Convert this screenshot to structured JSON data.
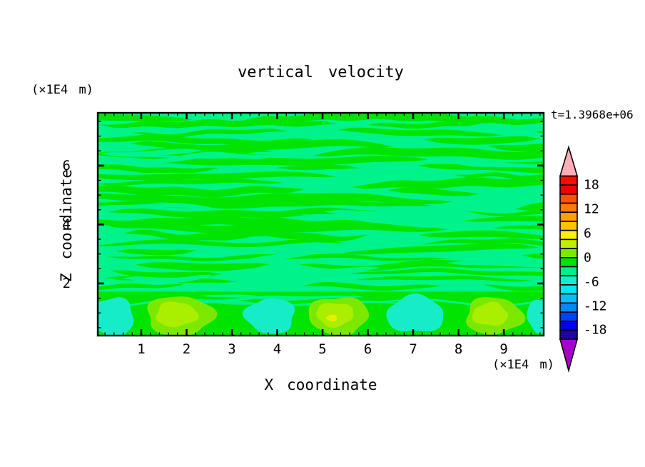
{
  "page": {
    "background": "#ffffff"
  },
  "chart_data": {
    "type": "filled_contour",
    "title": "vertical velocity",
    "timestamp": "t=1.3968e+06",
    "xlabel": "X coordinate",
    "ylabel": "Z coordinate",
    "x_axis_units": "(×1E4 m)",
    "y_axis_units": "(×1E4 m)",
    "xlim": [
      0.04,
      9.88
    ],
    "ylim": [
      0.23,
      7.79
    ],
    "x_major_ticks": [
      1,
      2,
      3,
      4,
      5,
      6,
      7,
      8,
      9
    ],
    "x_minor_step": 0.2,
    "y_major_ticks": [
      2,
      4,
      6
    ],
    "y_minor_step": 0.5,
    "grid": false,
    "colorbar": {
      "orientation": "vertical",
      "position": "right",
      "value_range": [
        -20.25,
        20.25
      ],
      "contour_interval": 2.25,
      "tick_values": [
        18,
        12,
        6,
        0,
        -6,
        -12,
        -18
      ],
      "tick_labels": [
        "18",
        "12",
        "6",
        "0",
        "-6",
        "-12",
        "-18"
      ],
      "segment_colors_top_to_bottom": [
        "#FF0A00",
        "#F20000",
        "#FF5200",
        "#FF7A00",
        "#FFA000",
        "#FFC400",
        "#FFF000",
        "#C0F000",
        "#7CE800",
        "#00E400",
        "#00EE86",
        "#16EDC8",
        "#00E9F0",
        "#00C0F8",
        "#0088FF",
        "#0040FF",
        "#0000F0",
        "#2000A8"
      ],
      "over_arrow_color": "#FFAEB6",
      "under_arrow_color": "#A800CC"
    },
    "field": {
      "description": "Filled contour field of vertical velocity: upper region (z > ~1.7) shows thin wavy horizontal stripes alternating between weak negative and near-zero values; lower boundary-layer region shows convective cells with chartreuse/yellow updrafts and aqua downdrafts on a green background.",
      "background_color": "#00E400",
      "stripe_region": {
        "z_min": 1.72,
        "z_max": 7.79,
        "base_color": "#00F28A",
        "stripe_color": "#00E400"
      },
      "updraft_cells": [
        {
          "x": 1.85,
          "z": 0.9,
          "rx": 0.74,
          "rz": 0.68,
          "colors": [
            "#7CE800",
            "#AAEE00"
          ]
        },
        {
          "x": 5.35,
          "z": 0.9,
          "rx": 0.66,
          "rz": 0.66,
          "colors": [
            "#7CE800",
            "#AAEE00",
            "#E8EE00"
          ]
        },
        {
          "x": 8.78,
          "z": 0.9,
          "rx": 0.63,
          "rz": 0.63,
          "colors": [
            "#7CE800",
            "#AAEE00"
          ]
        }
      ],
      "downdraft_cells": [
        {
          "x": 0.35,
          "z": 0.85,
          "rx": 0.5,
          "rz": 0.66,
          "colors": [
            "#16EDC8"
          ]
        },
        {
          "x": 3.85,
          "z": 0.9,
          "rx": 0.55,
          "rz": 0.6,
          "colors": [
            "#16EDC8"
          ]
        },
        {
          "x": 7.05,
          "z": 0.95,
          "rx": 0.63,
          "rz": 0.63,
          "colors": [
            "#16EDC8"
          ]
        },
        {
          "x": 9.85,
          "z": 0.9,
          "rx": 0.35,
          "rz": 0.55,
          "colors": [
            "#16EDC8"
          ]
        }
      ],
      "minor_features": [
        {
          "type": "patch",
          "color": "#00F28A",
          "x": 9.22,
          "z": 0.1,
          "rx": 0.1,
          "rz": 0.08
        }
      ]
    }
  }
}
